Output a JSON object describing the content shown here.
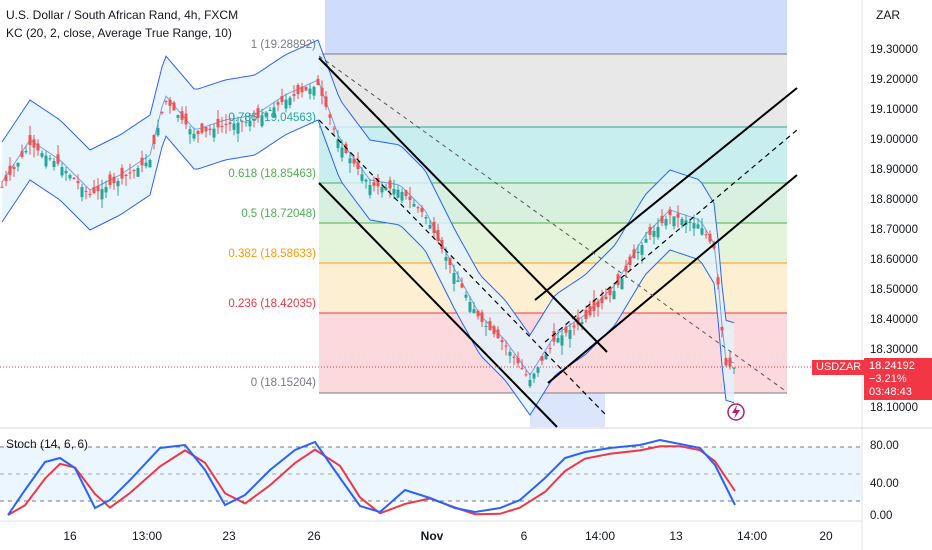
{
  "header": {
    "symbol_title": "U.S. Dollar / South African Rand, 4h, FXCM",
    "indicator": "KC (20, 2, close, Average True Range, 10)"
  },
  "currency_button": "ZAR",
  "price_axis": [
    "19.30000",
    "19.20000",
    "19.10000",
    "19.00000",
    "18.90000",
    "18.80000",
    "18.70000",
    "18.60000",
    "18.50000",
    "18.40000",
    "18.30000",
    "18.10000"
  ],
  "price_tag": {
    "symbol": "USDZAR",
    "price": "18.24192",
    "change": "−3.21%",
    "countdown": "03:48:43"
  },
  "fib_levels": [
    {
      "label": "1 (19.28892)",
      "color": "#787b86"
    },
    {
      "label": "0.786 (19.04563)",
      "color": "#26a69a"
    },
    {
      "label": "0.618 (18.85463)",
      "color": "#4caf50"
    },
    {
      "label": "0.5 (18.72048)",
      "color": "#4caf50"
    },
    {
      "label": "0.382 (18.58633)",
      "color": "#ff9800"
    },
    {
      "label": "0.236 (18.42035)",
      "color": "#f23645"
    },
    {
      "label": "0 (18.15204)",
      "color": "#787b86"
    }
  ],
  "stoch": {
    "label": "Stoch (14, 6, 6)",
    "axis": [
      "80.00",
      "40.00",
      "0.00"
    ]
  },
  "time_axis": [
    "16",
    "13:00",
    "23",
    "26",
    "Nov",
    "6",
    "14:00",
    "13",
    "14:00",
    "20"
  ],
  "colors": {
    "up": "#26a69a",
    "down": "#ef5350",
    "channel": "#2962ff",
    "stoch_k": "#2962ff",
    "stoch_d": "#f23645"
  },
  "icons": {
    "flash": "lightning-icon"
  }
}
